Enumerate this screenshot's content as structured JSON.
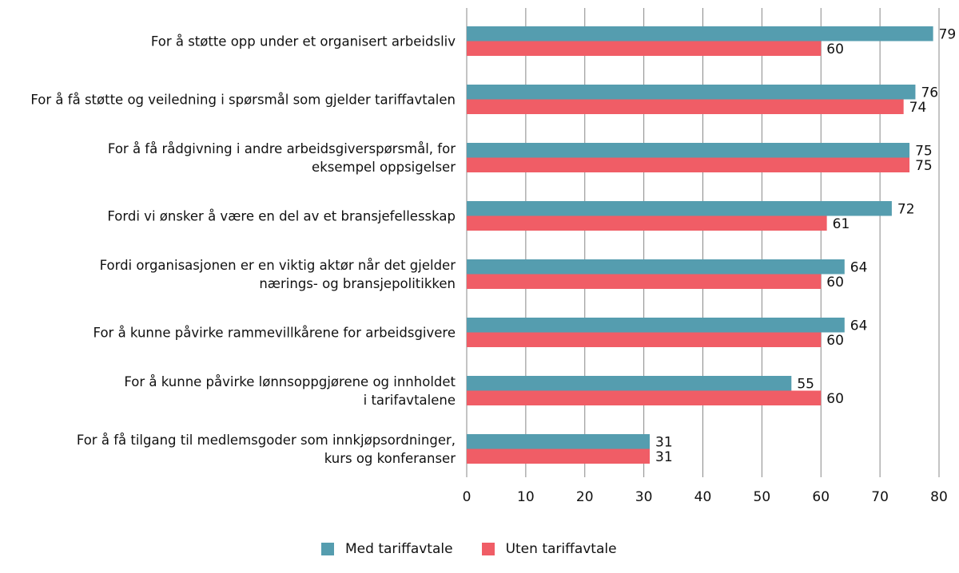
{
  "chart_data": {
    "type": "bar",
    "orientation": "horizontal",
    "categories": [
      "For å støtte opp under et organisert arbeidsliv",
      "For å få støtte og veiledning i spørsmål som gjelder tariffavtalen",
      "For å få rådgivning i andre arbeidsgiverspørsmål, for eksempel oppsigelser",
      "Fordi vi ønsker å være en del av et bransjefellesskap",
      "Fordi organisasjonen er en viktig aktør når det gjelder nærings- og bransjepolitikken",
      "For å kunne påvirke rammevillkårene for arbeidsgivere",
      "For å kunne påvirke lønnsoppgjørene og innholdet i tarifavtalene",
      "For å få tilgang til medlemsgoder som innkjøpsordninger, kurs og konferanser"
    ],
    "category_lines": [
      [
        "For å støtte opp under et organisert arbeidsliv"
      ],
      [
        "For å få støtte og veiledning i spørsmål som gjelder tariffavtalen"
      ],
      [
        "For å få rådgivning i andre arbeidsgiverspørsmål, for",
        "eksempel oppsigelser"
      ],
      [
        "Fordi vi ønsker å være en del av et bransjefellesskap"
      ],
      [
        "Fordi organisasjonen er en viktig aktør når det gjelder",
        "nærings- og bransjepolitikken"
      ],
      [
        "For å kunne påvirke rammevillkårene for arbeidsgivere"
      ],
      [
        "For å kunne påvirke lønnsoppgjørene og innholdet",
        "i tarifavtalene"
      ],
      [
        "For å få tilgang til medlemsgoder som innkjøpsordninger,",
        "kurs og konferanser"
      ]
    ],
    "series": [
      {
        "name": "Med tariffavtale",
        "color": "#559daf",
        "values": [
          79,
          76,
          75,
          72,
          64,
          64,
          55,
          31
        ]
      },
      {
        "name": "Uten tariffavtale",
        "color": "#f05d66",
        "values": [
          60,
          74,
          75,
          61,
          60,
          60,
          60,
          31
        ]
      }
    ],
    "xlim": [
      0,
      80
    ],
    "xticks": [
      0,
      10,
      20,
      30,
      40,
      50,
      60,
      70,
      80
    ],
    "grid": "vertical",
    "legend_placement": "bottom",
    "data_labels": true
  }
}
